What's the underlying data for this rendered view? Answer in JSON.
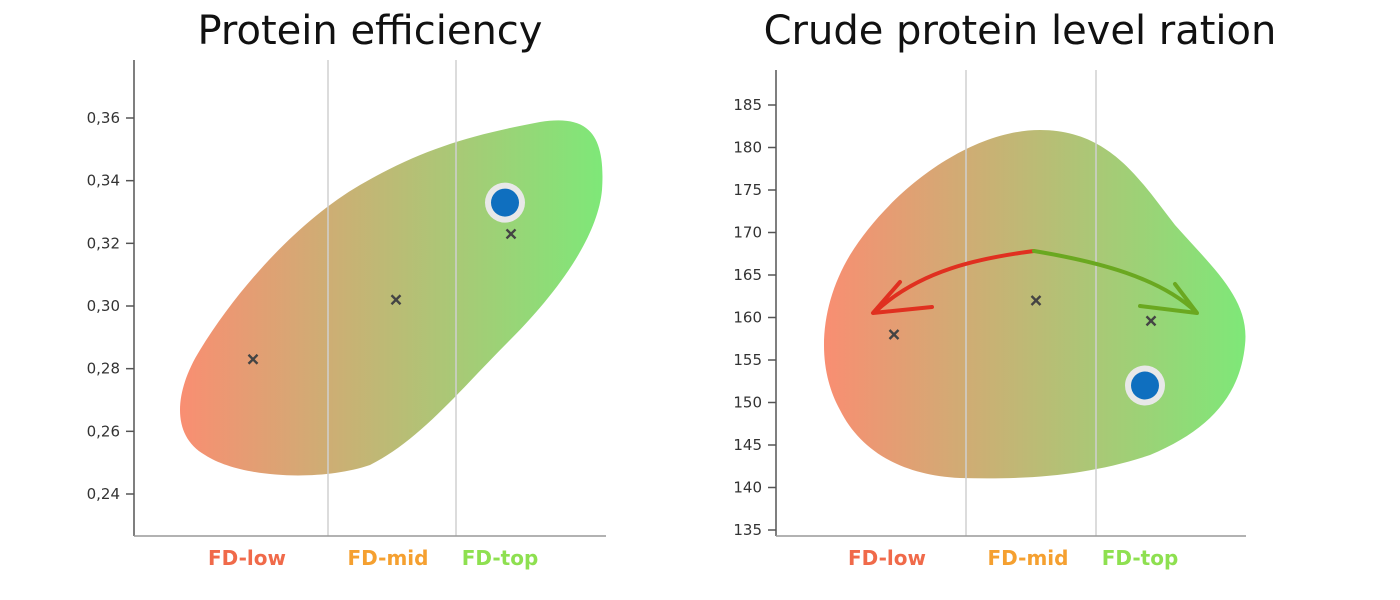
{
  "chart_data": [
    {
      "type": "scatter",
      "title": "Protein efficiency",
      "categories": [
        "FD-low",
        "FD-mid",
        "FD-top"
      ],
      "category_colors": [
        "#f06a4a",
        "#f5a030",
        "#8ee050"
      ],
      "y_ticks": [
        "0,24",
        "0,26",
        "0,28",
        "0,30",
        "0,32",
        "0,34",
        "0,36"
      ],
      "ylim": [
        0.235,
        0.375
      ],
      "means": [
        0.283,
        0.302,
        0.323
      ],
      "highlight": {
        "category": "FD-top",
        "y": 0.333,
        "color": "#0f6fbf"
      },
      "blob_gradient": [
        "#f98e72",
        "#7ee878"
      ],
      "grid": "vertical category separators"
    },
    {
      "type": "scatter",
      "title": "Crude protein level ration",
      "categories": [
        "FD-low",
        "FD-mid",
        "FD-top"
      ],
      "category_colors": [
        "#f06a4a",
        "#f5a030",
        "#8ee050"
      ],
      "y_ticks": [
        "135",
        "140",
        "145",
        "150",
        "155",
        "160",
        "165",
        "170",
        "175",
        "180",
        "185"
      ],
      "ylim": [
        134,
        188
      ],
      "means": [
        158,
        162,
        159.6
      ],
      "highlight": {
        "category": "FD-top",
        "y": 152,
        "color": "#0f6fbf"
      },
      "arrows": [
        {
          "from": "FD-mid",
          "to": "FD-low",
          "color": "#e03020"
        },
        {
          "from": "FD-mid",
          "to": "FD-top",
          "color": "#6aa820"
        }
      ],
      "blob_gradient": [
        "#f98e72",
        "#7ee878"
      ],
      "grid": "vertical category separators"
    }
  ]
}
